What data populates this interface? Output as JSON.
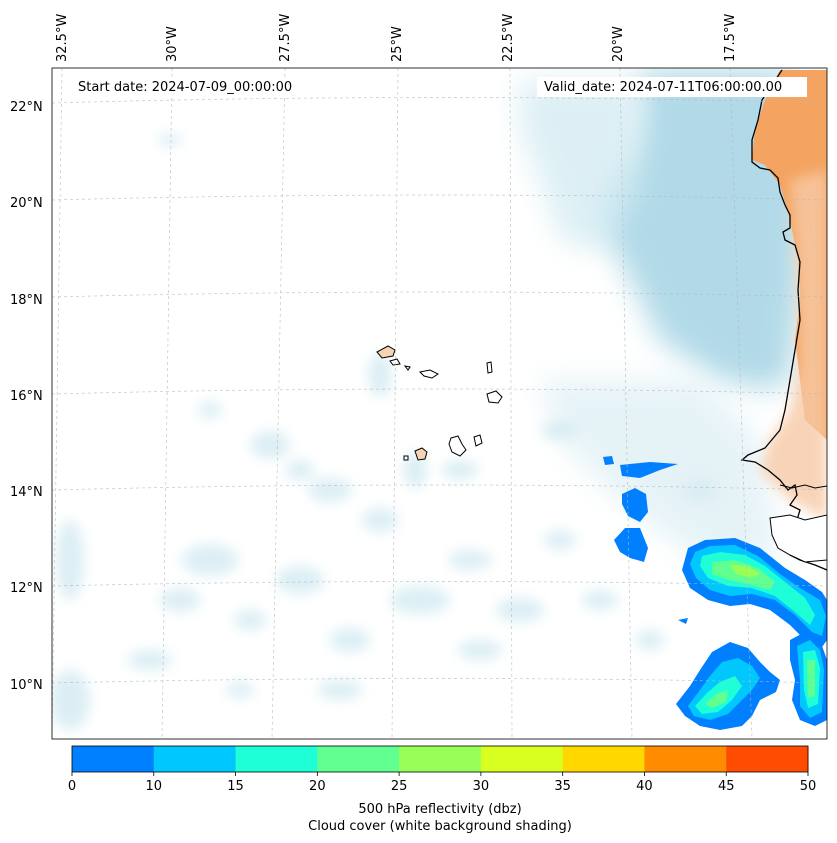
{
  "header": {
    "start_date": "Start date: 2024-07-09_00:00:00",
    "valid_date": "Valid_date: 2024-07-11T06:00:00.00"
  },
  "longitude_labels": [
    "32.5°W",
    "30°W",
    "27.5°W",
    "25°W",
    "22.5°W",
    "20°W",
    "17.5°W"
  ],
  "latitude_labels": [
    "22°N",
    "20°N",
    "18°N",
    "16°N",
    "14°N",
    "12°N",
    "10°N"
  ],
  "colorbar": {
    "ticks": [
      "0",
      "10",
      "15",
      "20",
      "25",
      "30",
      "35",
      "40",
      "45",
      "50"
    ],
    "colors": [
      "#0080ff",
      "#00c8ff",
      "#1effd8",
      "#60ff90",
      "#98ff58",
      "#d8ff20",
      "#ffd800",
      "#ff8c00",
      "#ff4c00"
    ],
    "title_line1": "500 hPa reflectivity (dbz)",
    "title_line2": "Cloud cover (white background shading)"
  },
  "palette": {
    "cloud_light": "#add8e6",
    "land": "#f4a460",
    "land_light": "#f7c9a6",
    "island_fill": "#f5d3b3"
  }
}
